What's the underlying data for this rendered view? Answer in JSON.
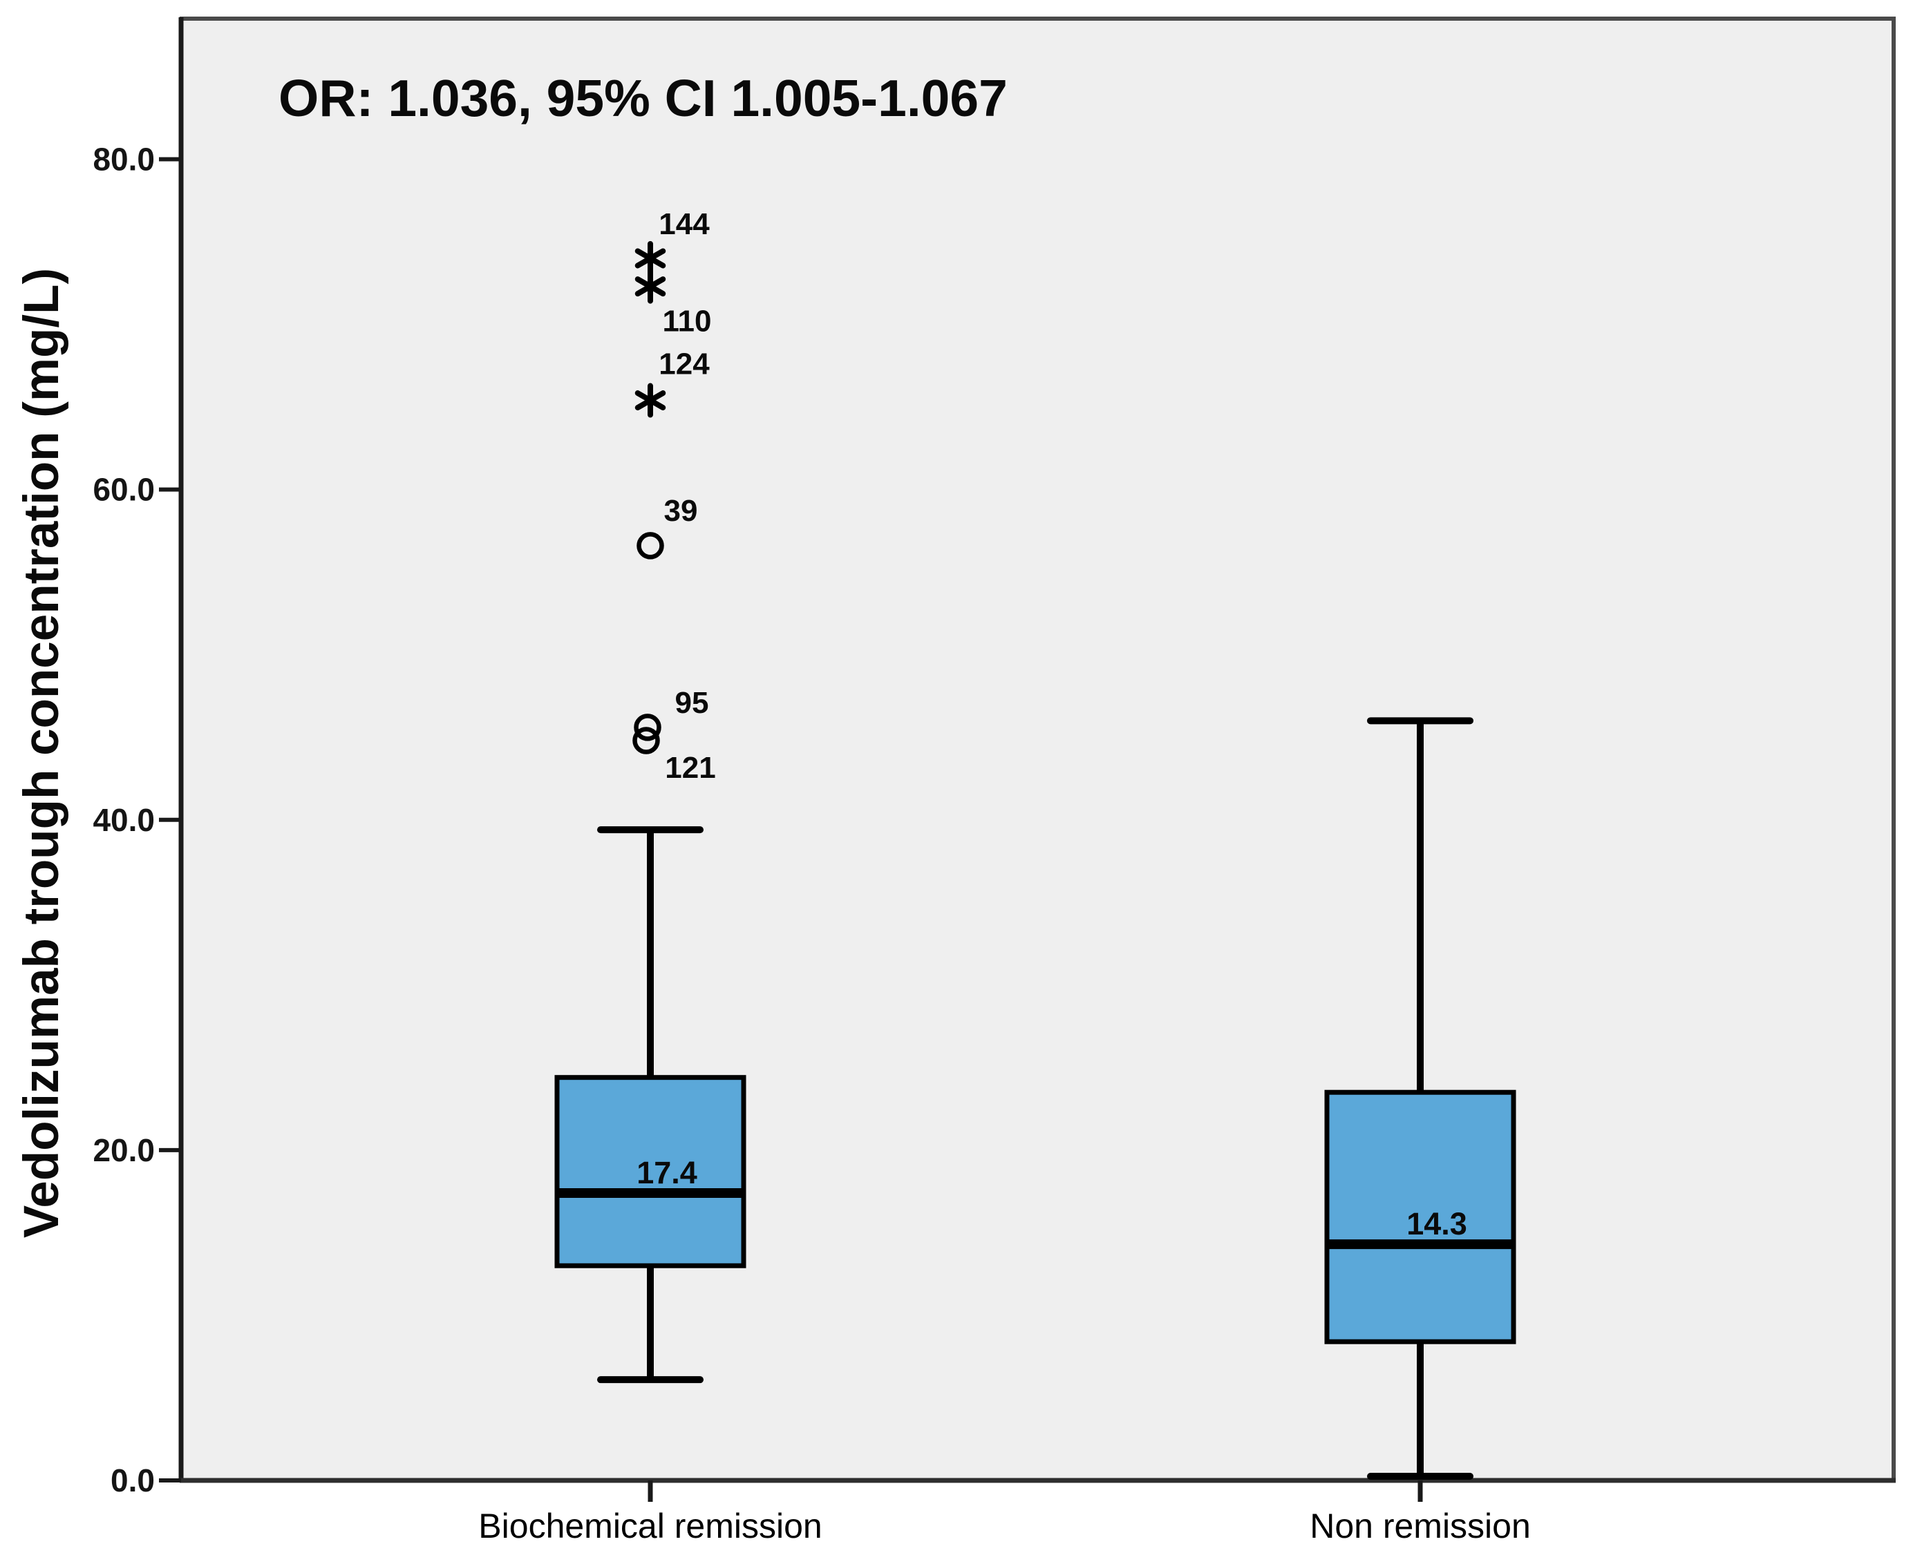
{
  "chart_data": {
    "type": "boxplot",
    "annotation": "OR: 1.036, 95% CI 1.005-1.067",
    "ylabel": "Vedolizumab trough concentration (mg/L)",
    "ylim": [
      0,
      88.5
    ],
    "yticks": [
      {
        "value": 0,
        "label": "0.0"
      },
      {
        "value": 20,
        "label": "20.0"
      },
      {
        "value": 40,
        "label": "40.0"
      },
      {
        "value": 60,
        "label": "60.0"
      },
      {
        "value": 80,
        "label": "80.0"
      }
    ],
    "grid": "off",
    "legend": "none",
    "groups": [
      {
        "label": "Biochemical remission",
        "median": 17.4,
        "median_label": "17.4",
        "q1": 13.0,
        "q3": 24.4,
        "whisker_low": 6.1,
        "whisker_high": 39.4,
        "outliers": [
          {
            "type": "star",
            "value": 74.0,
            "dx": 0,
            "label": "144",
            "label_dx": 49,
            "label_dy": -35
          },
          {
            "type": "star",
            "value": 72.3,
            "dx": 0,
            "label": "110",
            "label_dx": 53,
            "label_dy": 65
          },
          {
            "type": "star",
            "value": 65.4,
            "dx": 0,
            "label": "124",
            "label_dx": 49,
            "label_dy": -38
          },
          {
            "type": "circle",
            "value": 56.6,
            "dx": 0,
            "label": "39",
            "label_dx": 44,
            "label_dy": -36
          },
          {
            "type": "circle",
            "value": 45.6,
            "dx": -4,
            "label": "95",
            "label_dx": 60,
            "label_dy": -21
          },
          {
            "type": "circle",
            "value": 44.8,
            "dx": -6,
            "label": "121",
            "label_dx": 58,
            "label_dy": 54
          }
        ]
      },
      {
        "label": "Non remission",
        "median": 14.3,
        "median_label": "14.3",
        "q1": 8.4,
        "q3": 23.5,
        "whisker_low": 0.25,
        "whisker_high": 46.0,
        "outliers": []
      }
    ],
    "style": {
      "box_fill": "#5BA8D9",
      "box_stroke": "#000000",
      "plot_bg": "#EFEFEF",
      "frame_gray": "#4A4A4A",
      "axis_black": "#1A1A1A"
    }
  }
}
